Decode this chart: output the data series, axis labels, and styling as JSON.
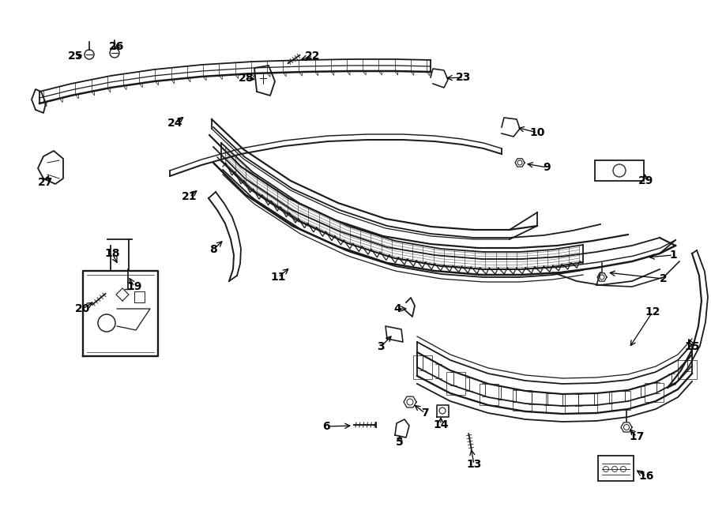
{
  "bg_color": "#ffffff",
  "line_color": "#1a1a1a",
  "figsize": [
    9.0,
    6.61
  ],
  "dpi": 100,
  "xlim": [
    0,
    900
  ],
  "ylim": [
    0,
    661
  ]
}
